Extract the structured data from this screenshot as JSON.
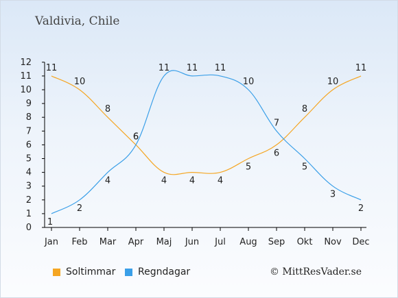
{
  "title": "Valdivia, Chile",
  "colors": {
    "sun": "#f5a623",
    "rain": "#3a9fe8",
    "axis": "#000000",
    "label": "#222222"
  },
  "chart_data": {
    "type": "line",
    "categories": [
      "Jan",
      "Feb",
      "Mar",
      "Apr",
      "Maj",
      "Jun",
      "Jul",
      "Aug",
      "Sep",
      "Okt",
      "Nov",
      "Dec"
    ],
    "ylim": [
      0,
      12
    ],
    "yticks": [
      0,
      1,
      2,
      3,
      4,
      5,
      6,
      7,
      8,
      9,
      10,
      11,
      12
    ],
    "grid": false,
    "legend_position": "bottom",
    "series": [
      {
        "name": "Soltimmar",
        "color": "#f5a623",
        "values": [
          11,
          10,
          8,
          6,
          4,
          4,
          4,
          5,
          6,
          8,
          10,
          11
        ]
      },
      {
        "name": "Regndagar",
        "color": "#3a9fe8",
        "values": [
          1,
          2,
          4,
          6,
          11,
          11,
          11,
          10,
          7,
          5,
          3,
          2
        ]
      }
    ]
  },
  "legend": {
    "sun_label": "Soltimmar",
    "rain_label": "Regndagar"
  },
  "credit": "© MittResVader.se"
}
